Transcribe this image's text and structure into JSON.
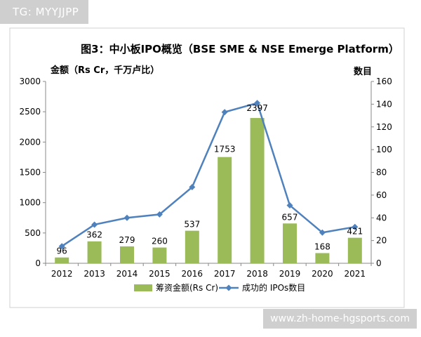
{
  "watermark": {
    "tg": "TG: MYYJJPP",
    "site": "www.zh-home-hgsports.com"
  },
  "chart_data": {
    "type": "bar",
    "title": "图3：中小板IPO概览（BSE SME & NSE Emerge Platform）",
    "y_left_label": "金额（Rs Cr，千万卢比）",
    "y_right_label": "数目",
    "categories": [
      "2012",
      "2013",
      "2014",
      "2015",
      "2016",
      "2017",
      "2018",
      "2019",
      "2020",
      "2021"
    ],
    "series": [
      {
        "name": "筹资金额(Rs Cr)",
        "type": "bar",
        "axis": "left",
        "color": "#9bbb59",
        "values": [
          96,
          362,
          279,
          260,
          537,
          1753,
          2397,
          657,
          168,
          421
        ]
      },
      {
        "name": "成功的 IPOs数目",
        "type": "line",
        "axis": "right",
        "color": "#4f81bd",
        "values": [
          15,
          34,
          40,
          43,
          67,
          133,
          141,
          51,
          27,
          32
        ]
      }
    ],
    "y_left": {
      "min": 0,
      "max": 3000,
      "ticks": [
        0,
        500,
        1000,
        1500,
        2000,
        2500,
        3000
      ]
    },
    "y_right": {
      "min": 0,
      "max": 160,
      "ticks": [
        0,
        20,
        40,
        60,
        80,
        100,
        120,
        140,
        160
      ]
    },
    "grid": false,
    "legend_position": "bottom"
  }
}
